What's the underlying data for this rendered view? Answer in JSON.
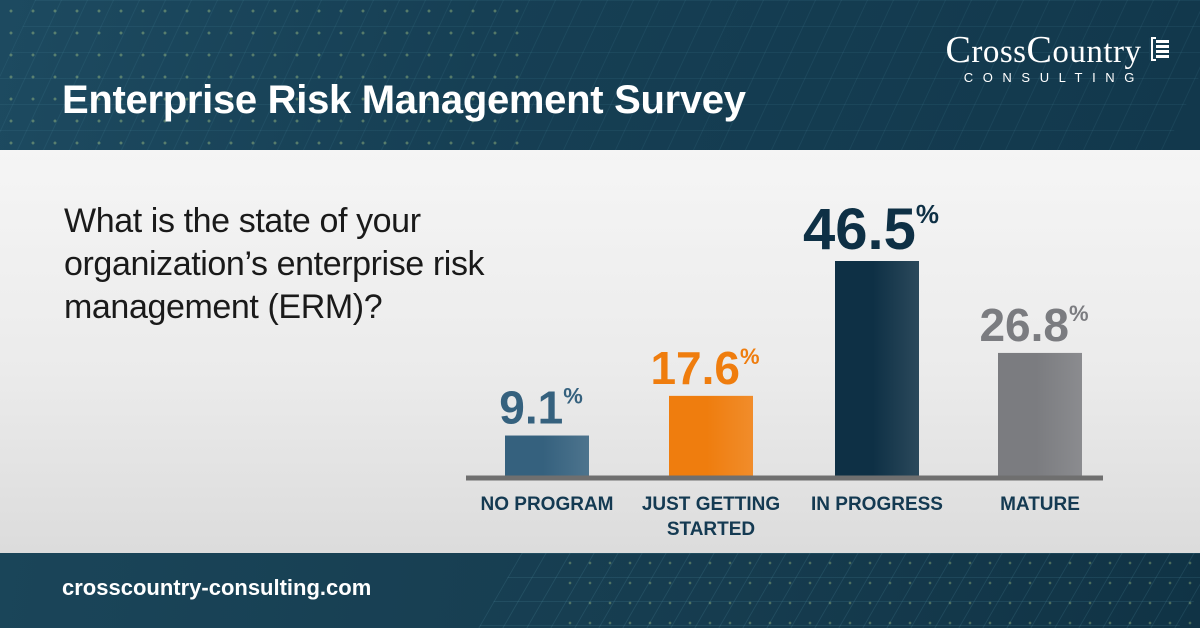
{
  "header": {
    "title": "Enterprise Risk Management Survey",
    "logo": {
      "name": "CrossCountry",
      "sub": "CONSULTING"
    }
  },
  "question": "What is the state of your organization’s enterprise risk management (ERM)?",
  "footer": {
    "url": "crosscountry-consulting.com"
  },
  "chart_data": {
    "type": "bar",
    "title": "",
    "categories": [
      "NO PROGRAM",
      "JUST GETTING STARTED",
      "IN PROGRESS",
      "MATURE"
    ],
    "category_lines": [
      [
        "NO PROGRAM"
      ],
      [
        "JUST GETTING",
        "STARTED"
      ],
      [
        "IN PROGRESS"
      ],
      [
        "MATURE"
      ]
    ],
    "values": [
      9.1,
      17.6,
      46.5,
      26.8
    ],
    "value_labels": [
      "9.1",
      "17.6",
      "46.5",
      "26.8"
    ],
    "unit": "%",
    "colors": [
      "#35617e",
      "#ef7d0e",
      "#0e3045",
      "#7b7c80"
    ],
    "label_colors": [
      "#35617e",
      "#ef7d0e",
      "#0e3045",
      "#7b7c80"
    ],
    "axis_color": "#6f6f6f",
    "category_label_color": "#143a52",
    "ylim": [
      0,
      46.5
    ],
    "grid": false,
    "legend": "none"
  }
}
